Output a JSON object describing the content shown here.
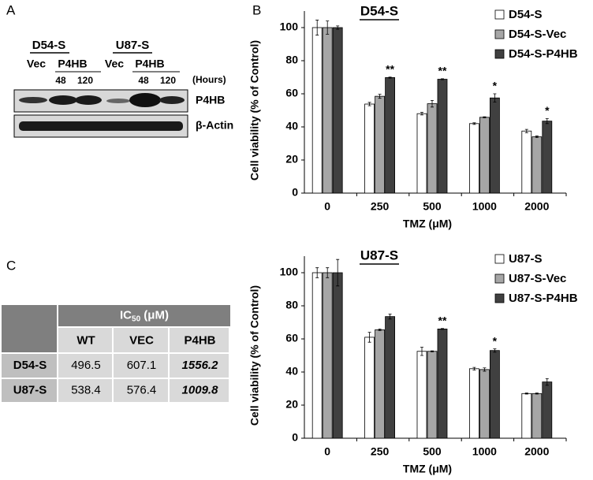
{
  "panel_labels": [
    "A",
    "B",
    "C"
  ],
  "blot": {
    "groups": [
      "D54-S",
      "U87-S"
    ],
    "lanes": [
      "Vec",
      "P4HB",
      "Vec",
      "P4HB"
    ],
    "hours": [
      "48",
      "120",
      "48",
      "120"
    ],
    "hours_label": "(Hours)",
    "bands": [
      "P4HB",
      "β-Actin"
    ]
  },
  "table": {
    "header": {
      "main": "IC",
      "sub": "50",
      "unit": "(μM)"
    },
    "columns": [
      "WT",
      "VEC",
      "P4HB"
    ],
    "rows": [
      [
        "D54-S",
        496.5,
        607.1,
        1556.2
      ],
      [
        "U87-S",
        538.4,
        576.4,
        1009.8
      ]
    ]
  },
  "chart_data": [
    {
      "type": "bar",
      "title": "D54-S",
      "x_label": "TMZ (μM)",
      "y_label": "Cell viability (% of Control)",
      "categories": [
        "0",
        "250",
        "500",
        "1000",
        "2000"
      ],
      "ylim": [
        0,
        110
      ],
      "yticks": [
        0,
        20,
        40,
        60,
        80,
        100
      ],
      "series": [
        {
          "name": "D54-S",
          "color": "#ffffff",
          "values": [
            100,
            53.8,
            48,
            42,
            37.5
          ],
          "errors": [
            4.5,
            1,
            0.8,
            0.5,
            1
          ],
          "annotations": [
            null,
            null,
            null,
            null,
            null
          ]
        },
        {
          "name": "D54-S-Vec",
          "color": "#a6a6a6",
          "values": [
            100,
            58.5,
            54,
            45.8,
            34
          ],
          "errors": [
            4,
            1.2,
            2,
            0.3,
            0.5
          ],
          "annotations": [
            null,
            null,
            null,
            null,
            null
          ]
        },
        {
          "name": "D54-S-P4HB",
          "color": "#404040",
          "values": [
            100,
            69.8,
            68.8,
            57.5,
            43.5
          ],
          "errors": [
            1,
            0.3,
            0.3,
            2.5,
            1.5
          ],
          "annotations": [
            null,
            "**",
            "**",
            "*",
            "*"
          ]
        }
      ]
    },
    {
      "type": "bar",
      "title": "U87-S",
      "x_label": "TMZ (μM)",
      "y_label": "Cell viability (% of Control)",
      "categories": [
        "0",
        "250",
        "500",
        "1000",
        "2000"
      ],
      "ylim": [
        0,
        110
      ],
      "yticks": [
        0,
        20,
        40,
        60,
        80,
        100
      ],
      "series": [
        {
          "name": "U87-S",
          "color": "#ffffff",
          "values": [
            100,
            61,
            52.5,
            42,
            27
          ],
          "errors": [
            3,
            3,
            2.5,
            0.8,
            0.3
          ],
          "annotations": [
            null,
            null,
            null,
            null,
            null
          ]
        },
        {
          "name": "U87-S-Vec",
          "color": "#a6a6a6",
          "values": [
            100,
            65.5,
            52.5,
            41.5,
            27
          ],
          "errors": [
            3,
            0.5,
            0.3,
            1,
            0.3
          ],
          "annotations": [
            null,
            null,
            null,
            null,
            null
          ]
        },
        {
          "name": "U87-S-P4HB",
          "color": "#404040",
          "values": [
            100,
            73.5,
            66,
            53,
            34
          ],
          "errors": [
            8,
            1.5,
            0.3,
            1,
            2
          ],
          "annotations": [
            null,
            null,
            "**",
            "*",
            null
          ]
        }
      ]
    }
  ]
}
